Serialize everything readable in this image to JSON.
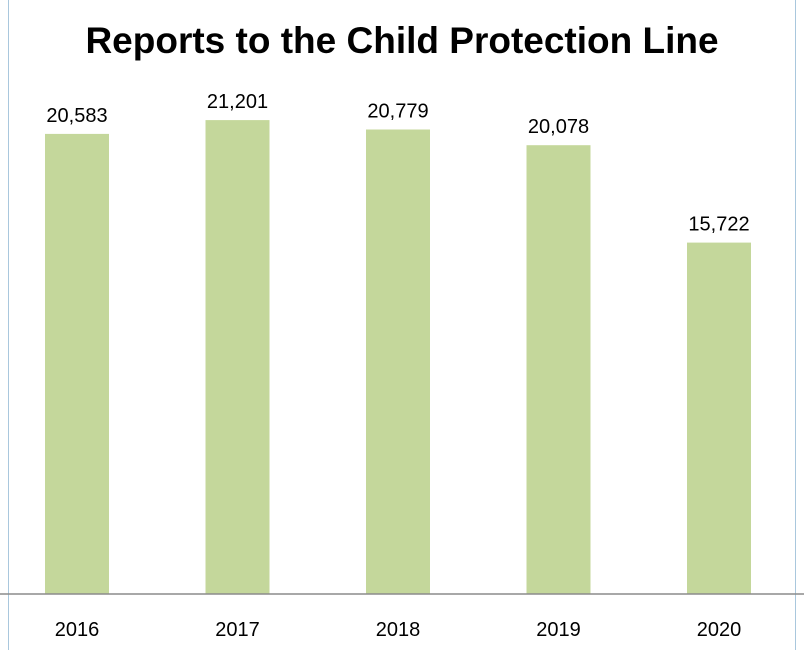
{
  "chart_data": {
    "type": "bar",
    "title": "Reports to the Child Protection Line",
    "categories": [
      "2016",
      "2017",
      "2018",
      "2019",
      "2020"
    ],
    "values": [
      20583,
      21201,
      20779,
      20078,
      15722
    ],
    "value_labels": [
      "20,583",
      "21,201",
      "20,779",
      "20,078",
      "15,722"
    ],
    "xlabel": "",
    "ylabel": "",
    "ylim": [
      0,
      25500
    ],
    "grid": false,
    "legend": "none",
    "bar_color": "#c4d79b",
    "axis_color": "#8c8c8c",
    "frame_color": "#a9c7dd"
  }
}
